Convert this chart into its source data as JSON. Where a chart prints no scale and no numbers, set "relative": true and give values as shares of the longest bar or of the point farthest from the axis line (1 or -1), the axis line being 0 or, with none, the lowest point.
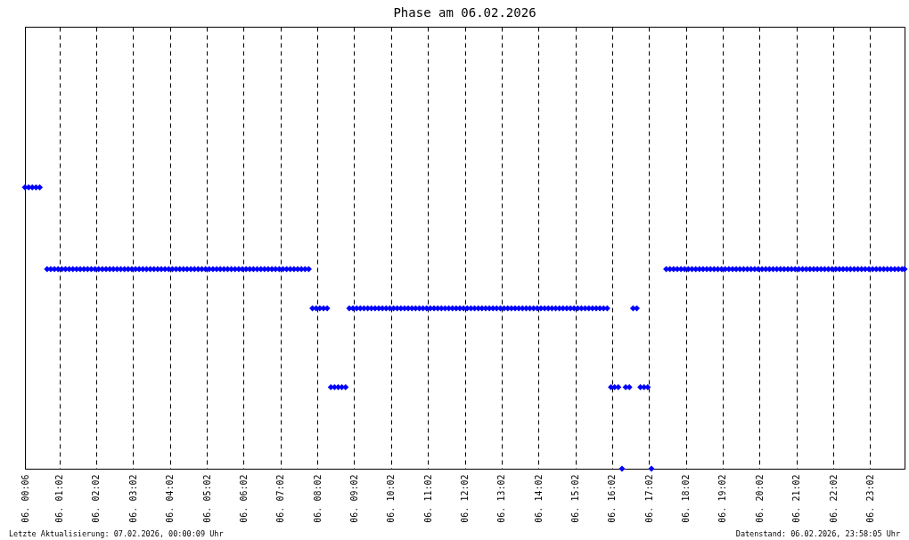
{
  "chart_data": {
    "type": "scatter",
    "title": "Phase am 06.02.2026",
    "relative": true,
    "marker": "diamond",
    "grid": "x",
    "xlim": [
      "2026-02-06T00:06",
      "2026-02-06T23:58"
    ],
    "xticks": [
      {
        "value": "2026-02-06T00:06",
        "label": "06. 00:06"
      },
      {
        "value": "2026-02-06T01:02",
        "label": "06. 01:02"
      },
      {
        "value": "2026-02-06T02:02",
        "label": "06. 02:02"
      },
      {
        "value": "2026-02-06T03:02",
        "label": "06. 03:02"
      },
      {
        "value": "2026-02-06T04:02",
        "label": "06. 04:02"
      },
      {
        "value": "2026-02-06T05:02",
        "label": "06. 05:02"
      },
      {
        "value": "2026-02-06T06:02",
        "label": "06. 06:02"
      },
      {
        "value": "2026-02-06T07:02",
        "label": "06. 07:02"
      },
      {
        "value": "2026-02-06T08:02",
        "label": "06. 08:02"
      },
      {
        "value": "2026-02-06T09:02",
        "label": "06. 09:02"
      },
      {
        "value": "2026-02-06T10:02",
        "label": "06. 10:02"
      },
      {
        "value": "2026-02-06T11:02",
        "label": "06. 11:02"
      },
      {
        "value": "2026-02-06T12:02",
        "label": "06. 12:02"
      },
      {
        "value": "2026-02-06T13:02",
        "label": "06. 13:02"
      },
      {
        "value": "2026-02-06T14:02",
        "label": "06. 14:02"
      },
      {
        "value": "2026-02-06T15:02",
        "label": "06. 15:02"
      },
      {
        "value": "2026-02-06T16:02",
        "label": "06. 16:02"
      },
      {
        "value": "2026-02-06T17:02",
        "label": "06. 17:02"
      },
      {
        "value": "2026-02-06T18:02",
        "label": "06. 18:02"
      },
      {
        "value": "2026-02-06T19:02",
        "label": "06. 19:02"
      },
      {
        "value": "2026-02-06T20:02",
        "label": "06. 20:02"
      },
      {
        "value": "2026-02-06T21:02",
        "label": "06. 21:02"
      },
      {
        "value": "2026-02-06T22:02",
        "label": "06. 22:02"
      },
      {
        "value": "2026-02-06T23:02",
        "label": "06. 23:02"
      }
    ],
    "series": [
      {
        "color": "#0000ff",
        "x": [
          "2026-02-06T00:06",
          "2026-02-06T00:12",
          "2026-02-06T00:18",
          "2026-02-06T00:24",
          "2026-02-06T00:30",
          "2026-02-06T00:36",
          "2026-02-06T00:42",
          "2026-02-06T00:48",
          "2026-02-06T00:54",
          "2026-02-06T01:00",
          "2026-02-06T01:06",
          "2026-02-06T01:12",
          "2026-02-06T01:18",
          "2026-02-06T01:24",
          "2026-02-06T01:30",
          "2026-02-06T01:36",
          "2026-02-06T01:42",
          "2026-02-06T01:48",
          "2026-02-06T01:54",
          "2026-02-06T02:00",
          "2026-02-06T02:06",
          "2026-02-06T02:12",
          "2026-02-06T02:18",
          "2026-02-06T02:24",
          "2026-02-06T02:30",
          "2026-02-06T02:36",
          "2026-02-06T02:42",
          "2026-02-06T02:48",
          "2026-02-06T02:54",
          "2026-02-06T03:00",
          "2026-02-06T03:06",
          "2026-02-06T03:12",
          "2026-02-06T03:18",
          "2026-02-06T03:24",
          "2026-02-06T03:30",
          "2026-02-06T03:36",
          "2026-02-06T03:42",
          "2026-02-06T03:48",
          "2026-02-06T03:54",
          "2026-02-06T04:00",
          "2026-02-06T04:06",
          "2026-02-06T04:12",
          "2026-02-06T04:18",
          "2026-02-06T04:24",
          "2026-02-06T04:30",
          "2026-02-06T04:36",
          "2026-02-06T04:42",
          "2026-02-06T04:48",
          "2026-02-06T04:54",
          "2026-02-06T05:00",
          "2026-02-06T05:06",
          "2026-02-06T05:12",
          "2026-02-06T05:18",
          "2026-02-06T05:24",
          "2026-02-06T05:30",
          "2026-02-06T05:36",
          "2026-02-06T05:42",
          "2026-02-06T05:48",
          "2026-02-06T05:54",
          "2026-02-06T06:00",
          "2026-02-06T06:06",
          "2026-02-06T06:12",
          "2026-02-06T06:18",
          "2026-02-06T06:24",
          "2026-02-06T06:30",
          "2026-02-06T06:36",
          "2026-02-06T06:42",
          "2026-02-06T06:48",
          "2026-02-06T06:54",
          "2026-02-06T07:00",
          "2026-02-06T07:06",
          "2026-02-06T07:12",
          "2026-02-06T07:18",
          "2026-02-06T07:24",
          "2026-02-06T07:30",
          "2026-02-06T07:36",
          "2026-02-06T07:42",
          "2026-02-06T07:48",
          "2026-02-06T07:54",
          "2026-02-06T08:00",
          "2026-02-06T08:06",
          "2026-02-06T08:12",
          "2026-02-06T08:18",
          "2026-02-06T08:24",
          "2026-02-06T08:30",
          "2026-02-06T08:36",
          "2026-02-06T08:42",
          "2026-02-06T08:48",
          "2026-02-06T08:54",
          "2026-02-06T09:00",
          "2026-02-06T09:06",
          "2026-02-06T09:12",
          "2026-02-06T09:18",
          "2026-02-06T09:24",
          "2026-02-06T09:30",
          "2026-02-06T09:36",
          "2026-02-06T09:42",
          "2026-02-06T09:48",
          "2026-02-06T09:54",
          "2026-02-06T10:00",
          "2026-02-06T10:06",
          "2026-02-06T10:12",
          "2026-02-06T10:18",
          "2026-02-06T10:24",
          "2026-02-06T10:30",
          "2026-02-06T10:36",
          "2026-02-06T10:42",
          "2026-02-06T10:48",
          "2026-02-06T10:54",
          "2026-02-06T11:00",
          "2026-02-06T11:06",
          "2026-02-06T11:12",
          "2026-02-06T11:18",
          "2026-02-06T11:24",
          "2026-02-06T11:30",
          "2026-02-06T11:36",
          "2026-02-06T11:42",
          "2026-02-06T11:48",
          "2026-02-06T11:54",
          "2026-02-06T12:00",
          "2026-02-06T12:06",
          "2026-02-06T12:12",
          "2026-02-06T12:18",
          "2026-02-06T12:24",
          "2026-02-06T12:30",
          "2026-02-06T12:36",
          "2026-02-06T12:42",
          "2026-02-06T12:48",
          "2026-02-06T12:54",
          "2026-02-06T13:00",
          "2026-02-06T13:06",
          "2026-02-06T13:12",
          "2026-02-06T13:18",
          "2026-02-06T13:24",
          "2026-02-06T13:30",
          "2026-02-06T13:36",
          "2026-02-06T13:42",
          "2026-02-06T13:48",
          "2026-02-06T13:54",
          "2026-02-06T14:00",
          "2026-02-06T14:06",
          "2026-02-06T14:12",
          "2026-02-06T14:18",
          "2026-02-06T14:24",
          "2026-02-06T14:30",
          "2026-02-06T14:36",
          "2026-02-06T14:42",
          "2026-02-06T14:48",
          "2026-02-06T14:54",
          "2026-02-06T15:00",
          "2026-02-06T15:06",
          "2026-02-06T15:12",
          "2026-02-06T15:18",
          "2026-02-06T15:24",
          "2026-02-06T15:30",
          "2026-02-06T15:36",
          "2026-02-06T15:42",
          "2026-02-06T15:48",
          "2026-02-06T15:54",
          "2026-02-06T16:00",
          "2026-02-06T16:06",
          "2026-02-06T16:12",
          "2026-02-06T16:18",
          "2026-02-06T16:24",
          "2026-02-06T16:30",
          "2026-02-06T16:36",
          "2026-02-06T16:42",
          "2026-02-06T16:48",
          "2026-02-06T16:54",
          "2026-02-06T17:00",
          "2026-02-06T17:06",
          "2026-02-06T17:12",
          "2026-02-06T17:18",
          "2026-02-06T17:24",
          "2026-02-06T17:30",
          "2026-02-06T17:36",
          "2026-02-06T17:42",
          "2026-02-06T17:48",
          "2026-02-06T17:54",
          "2026-02-06T18:00",
          "2026-02-06T18:06",
          "2026-02-06T18:12",
          "2026-02-06T18:18",
          "2026-02-06T18:24",
          "2026-02-06T18:30",
          "2026-02-06T18:36",
          "2026-02-06T18:42",
          "2026-02-06T18:48",
          "2026-02-06T18:54",
          "2026-02-06T19:00",
          "2026-02-06T19:06",
          "2026-02-06T19:12",
          "2026-02-06T19:18",
          "2026-02-06T19:24",
          "2026-02-06T19:30",
          "2026-02-06T19:36",
          "2026-02-06T19:42",
          "2026-02-06T19:48",
          "2026-02-06T19:54",
          "2026-02-06T20:00",
          "2026-02-06T20:06",
          "2026-02-06T20:12",
          "2026-02-06T20:18",
          "2026-02-06T20:24",
          "2026-02-06T20:30",
          "2026-02-06T20:36",
          "2026-02-06T20:42",
          "2026-02-06T20:48",
          "2026-02-06T20:54",
          "2026-02-06T21:00",
          "2026-02-06T21:06",
          "2026-02-06T21:12",
          "2026-02-06T21:18",
          "2026-02-06T21:24",
          "2026-02-06T21:30",
          "2026-02-06T21:36",
          "2026-02-06T21:42",
          "2026-02-06T21:48",
          "2026-02-06T21:54",
          "2026-02-06T22:00",
          "2026-02-06T22:06",
          "2026-02-06T22:12",
          "2026-02-06T22:18",
          "2026-02-06T22:24",
          "2026-02-06T22:30",
          "2026-02-06T22:36",
          "2026-02-06T22:42",
          "2026-02-06T22:48",
          "2026-02-06T22:54",
          "2026-02-06T23:00",
          "2026-02-06T23:06",
          "2026-02-06T23:12",
          "2026-02-06T23:18",
          "2026-02-06T23:24",
          "2026-02-06T23:30",
          "2026-02-06T23:36",
          "2026-02-06T23:42",
          "2026-02-06T23:48",
          "2026-02-06T23:54",
          "2026-02-06T23:58"
        ],
        "values": [
          1,
          1,
          1,
          1,
          1,
          null,
          0.71,
          0.71,
          0.71,
          0.71,
          0.71,
          0.71,
          0.71,
          0.71,
          0.71,
          0.71,
          0.71,
          0.71,
          0.71,
          0.71,
          0.71,
          0.71,
          0.71,
          0.71,
          0.71,
          0.71,
          0.71,
          0.71,
          0.71,
          0.71,
          0.71,
          0.71,
          0.71,
          0.71,
          0.71,
          0.71,
          0.71,
          0.71,
          0.71,
          0.71,
          0.71,
          0.71,
          0.71,
          0.71,
          0.71,
          0.71,
          0.71,
          0.71,
          0.71,
          0.71,
          0.71,
          0.71,
          0.71,
          0.71,
          0.71,
          0.71,
          0.71,
          0.71,
          0.71,
          0.71,
          0.71,
          0.71,
          0.71,
          0.71,
          0.71,
          0.71,
          0.71,
          0.71,
          0.71,
          0.71,
          0.71,
          0.71,
          0.71,
          0.71,
          0.71,
          0.71,
          0.71,
          0.71,
          0.57,
          0.57,
          0.57,
          0.57,
          0.57,
          0.29,
          0.29,
          0.29,
          0.29,
          0.29,
          0.57,
          0.57,
          0.57,
          0.57,
          0.57,
          0.57,
          0.57,
          0.57,
          0.57,
          0.57,
          0.57,
          0.57,
          0.57,
          0.57,
          0.57,
          0.57,
          0.57,
          0.57,
          0.57,
          0.57,
          0.57,
          0.57,
          0.57,
          0.57,
          0.57,
          0.57,
          0.57,
          0.57,
          0.57,
          0.57,
          0.57,
          0.57,
          0.57,
          0.57,
          0.57,
          0.57,
          0.57,
          0.57,
          0.57,
          0.57,
          0.57,
          0.57,
          0.57,
          0.57,
          0.57,
          0.57,
          0.57,
          0.57,
          0.57,
          0.57,
          0.57,
          0.57,
          0.57,
          0.57,
          0.57,
          0.57,
          0.57,
          0.57,
          0.57,
          0.57,
          0.57,
          0.57,
          0.57,
          0.57,
          0.57,
          0.57,
          0.57,
          0.57,
          0.57,
          0.57,
          0.57,
          0.29,
          0.29,
          0.29,
          0,
          0.29,
          0.29,
          0.57,
          0.57,
          0.29,
          0.29,
          0.29,
          0,
          null,
          null,
          null,
          0.71,
          0.71,
          0.71,
          0.71,
          0.71,
          0.71,
          0.71,
          0.71,
          0.71,
          0.71,
          0.71,
          0.71,
          0.71,
          0.71,
          0.71,
          0.71,
          0.71,
          0.71,
          0.71,
          0.71,
          0.71,
          0.71,
          0.71,
          0.71,
          0.71,
          0.71,
          0.71,
          0.71,
          0.71,
          0.71,
          0.71,
          0.71,
          0.71,
          0.71,
          0.71,
          0.71,
          0.71,
          0.71,
          0.71,
          0.71,
          0.71,
          0.71,
          0.71,
          0.71,
          0.71,
          0.71,
          0.71,
          0.71,
          0.71,
          0.71,
          0.71,
          0.71,
          0.71,
          0.71,
          0.71,
          0.71,
          0.71,
          0.71,
          0.71,
          0.71,
          0.71,
          0.71,
          0.71,
          0.71,
          0.71,
          0.71
        ]
      }
    ],
    "annotations": [
      "Letzte Aktualisierung: 07.02.2026, 00:00:09 Uhr",
      "Datenstand: 06.02.2026, 23:58:05 Uhr"
    ]
  }
}
